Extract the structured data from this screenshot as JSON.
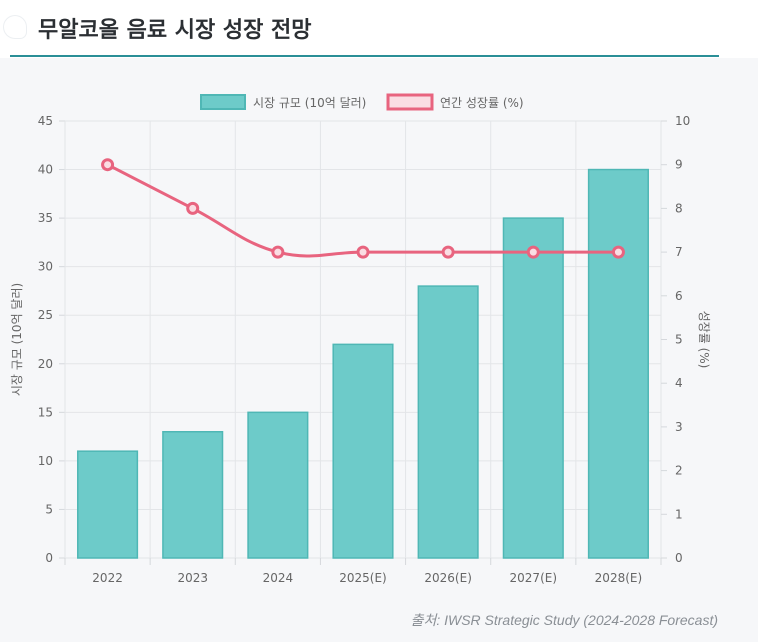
{
  "page": {
    "title": "무알코올 음료 시장 성장 전망"
  },
  "source": "출처: IWSR Strategic Study (2024-2028 Forecast)",
  "colors": {
    "bar_fill": "#6dcbc9",
    "bar_stroke": "#4fb7b5",
    "line": "#e8647f",
    "line_legend_fill": "#fadde3",
    "accent": "#2a8f97"
  },
  "chart_data": {
    "type": "bar",
    "categories": [
      "2022",
      "2023",
      "2024",
      "2025(E)",
      "2026(E)",
      "2027(E)",
      "2028(E)"
    ],
    "series": [
      {
        "name": "시장 규모 (10억 달러)",
        "type": "bar",
        "axis": "left",
        "values": [
          11,
          13,
          15,
          22,
          28,
          35,
          40
        ]
      },
      {
        "name": "연간 성장률 (%)",
        "type": "line",
        "axis": "right",
        "values": [
          9,
          8,
          7,
          7,
          7,
          7,
          7
        ]
      }
    ],
    "ylabel": "시장 규모 (10억 달러)",
    "ylabel_right": "성장률 (%)",
    "ylim": [
      0,
      45
    ],
    "ylim_right": [
      0,
      10
    ],
    "yticks": [
      0,
      5,
      10,
      15,
      20,
      25,
      30,
      35,
      40,
      45
    ],
    "yticks_right": [
      0,
      1,
      2,
      3,
      4,
      5,
      6,
      7,
      8,
      9,
      10
    ],
    "legend": "top-center",
    "grid": true
  }
}
